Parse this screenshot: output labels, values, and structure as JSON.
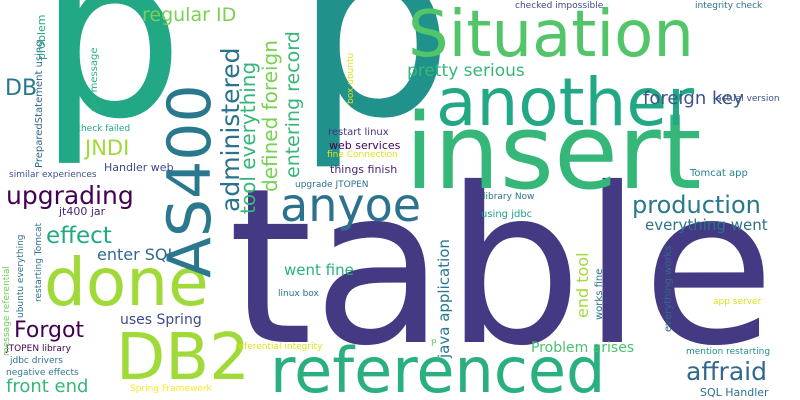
{
  "wordcloud": {
    "words": [
      {
        "text": "p",
        "color": "#22a884"
      },
      {
        "text": "p",
        "color": "#21918c"
      },
      {
        "text": "table",
        "color": "#443983"
      },
      {
        "text": "insert",
        "color": "#35b779"
      },
      {
        "text": "another",
        "color": "#22a884"
      },
      {
        "text": "Situation",
        "color": "#52c569"
      },
      {
        "text": "referenced",
        "color": "#2ab07f"
      },
      {
        "text": "done",
        "color": "#a0da39"
      },
      {
        "text": "DB2",
        "color": "#a0da39"
      },
      {
        "text": "AS400",
        "color": "#2a788e"
      },
      {
        "text": "anyoe",
        "color": "#2c728e"
      },
      {
        "text": "upgrading",
        "color": "#440154"
      },
      {
        "text": "effect",
        "color": "#22a884"
      },
      {
        "text": "Forgot",
        "color": "#440154"
      },
      {
        "text": "production",
        "color": "#2a788e"
      },
      {
        "text": "affraid",
        "color": "#31688e"
      },
      {
        "text": "front end",
        "color": "#35b779"
      },
      {
        "text": "pretty serious",
        "color": "#35b779"
      },
      {
        "text": "foreign key",
        "color": "#3b528b"
      },
      {
        "text": "regular ID",
        "color": "#7ad151"
      },
      {
        "text": "DB",
        "color": "#2a788e"
      },
      {
        "text": "JNDI",
        "color": "#a0da39"
      },
      {
        "text": "enter SQL",
        "color": "#31688e"
      },
      {
        "text": "went fine",
        "color": "#2ab07f"
      },
      {
        "text": "everything went",
        "color": "#2c728e"
      },
      {
        "text": "uses Spring",
        "color": "#3e4989"
      },
      {
        "text": "Problem arises",
        "color": "#4ac16d"
      },
      {
        "text": "SQL Handler",
        "color": "#2c728e"
      },
      {
        "text": "web services",
        "color": "#440154"
      },
      {
        "text": "things finish",
        "color": "#482878"
      },
      {
        "text": "Handler web",
        "color": "#3e4989"
      },
      {
        "text": "jt400 jar",
        "color": "#482878"
      },
      {
        "text": "restart linux",
        "color": "#46327e"
      },
      {
        "text": "upgrade JTOPEN",
        "color": "#2c728e"
      },
      {
        "text": "library Now",
        "color": "#2c728e"
      },
      {
        "text": "using jdbc",
        "color": "#1fa188"
      },
      {
        "text": "Tomcat app",
        "color": "#26828e"
      },
      {
        "text": "checked impossible",
        "color": "#3e4989"
      },
      {
        "text": "integrity check",
        "color": "#2c728e"
      },
      {
        "text": "actual version",
        "color": "#3b528b"
      },
      {
        "text": "similar experiences",
        "color": "#3b528b"
      },
      {
        "text": "check failed",
        "color": "#22a884"
      },
      {
        "text": "fine Connection",
        "color": "#dde318"
      },
      {
        "text": "JTOPEN library",
        "color": "#440154"
      },
      {
        "text": "jdbc drivers",
        "color": "#2c728e"
      },
      {
        "text": "negative effects",
        "color": "#2a788e"
      },
      {
        "text": "Spring Framework",
        "color": "#fde725"
      },
      {
        "text": "referential integrity",
        "color": "#dde318"
      },
      {
        "text": "linux box",
        "color": "#2c728e"
      },
      {
        "text": "app server",
        "color": "#dde318"
      },
      {
        "text": "mention restarting",
        "color": "#21918c"
      },
      {
        "text": "P",
        "color": "#6ece58"
      },
      {
        "text": "administered",
        "color": "#2c728e"
      },
      {
        "text": "tool everything",
        "color": "#35b779"
      },
      {
        "text": "defined foreign",
        "color": "#7ad151"
      },
      {
        "text": "entering record",
        "color": "#35b779"
      },
      {
        "text": "java application",
        "color": "#2a788e"
      },
      {
        "text": "end tool",
        "color": "#a0da39"
      },
      {
        "text": "works fine",
        "color": "#2c728e"
      },
      {
        "text": "everything works",
        "color": "#31688e"
      },
      {
        "text": "box ubuntu",
        "color": "#dde318"
      },
      {
        "text": "got message",
        "color": "#2ab07f"
      },
      {
        "text": "PreparedStatement using",
        "color": "#31688e"
      },
      {
        "text": "message referential",
        "color": "#6ece58"
      },
      {
        "text": "ubuntu everything",
        "color": "#2c728e"
      },
      {
        "text": "restarting Tomcat",
        "color": "#2c728e"
      },
      {
        "text": "problem",
        "color": "#22a884"
      }
    ]
  }
}
